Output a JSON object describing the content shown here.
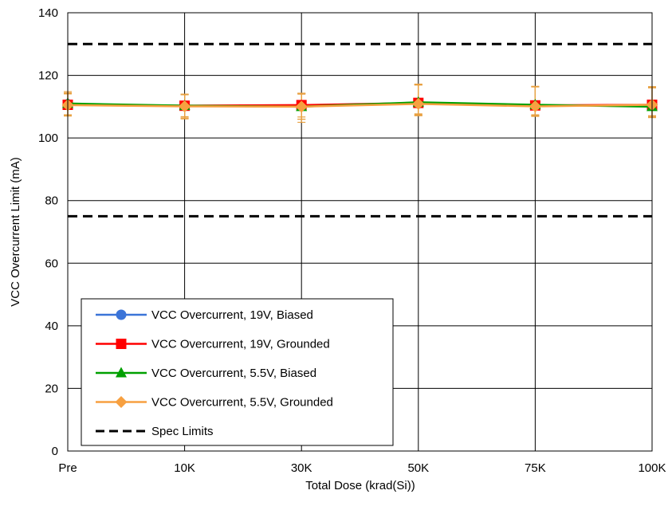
{
  "chart_data": {
    "type": "line",
    "title": "",
    "xlabel": "Total Dose (krad(Si))",
    "ylabel": "VCC Overcurrent Limit (mA)",
    "categories": [
      "Pre",
      "10K",
      "30K",
      "50K",
      "75K",
      "100K"
    ],
    "ylim": [
      0,
      140
    ],
    "yticks": [
      0,
      20,
      40,
      60,
      80,
      100,
      120,
      140
    ],
    "grid": true,
    "legend_position": "bottom-left",
    "series": [
      {
        "name": "VCC Overcurrent, 19V, Biased",
        "color": "#3b74d8",
        "marker": "circle",
        "values": [
          110.8,
          110.2,
          110.2,
          111.0,
          110.3,
          110.5
        ],
        "err_low": [
          3.5,
          3.8,
          4.2,
          3.8,
          3.2,
          3.8
        ],
        "err_high": [
          3.6,
          3.8,
          4.0,
          6.0,
          6.2,
          5.8
        ]
      },
      {
        "name": "VCC Overcurrent, 19V, Grounded",
        "color": "#ff0000",
        "marker": "square",
        "values": [
          110.6,
          110.3,
          110.5,
          111.2,
          110.4,
          110.6
        ],
        "err_low": [
          3.3,
          3.5,
          3.8,
          3.5,
          3.0,
          3.5
        ],
        "err_high": [
          3.5,
          3.6,
          3.8,
          5.8,
          5.9,
          5.5
        ]
      },
      {
        "name": "VCC Overcurrent, 5.5V, Biased",
        "color": "#00a000",
        "marker": "triangle",
        "values": [
          111.0,
          110.3,
          110.0,
          111.4,
          110.6,
          110.0
        ],
        "err_low": [
          3.6,
          4.2,
          5.0,
          4.0,
          3.5,
          3.5
        ],
        "err_high": [
          3.8,
          3.6,
          4.2,
          5.8,
          5.8,
          6.0
        ]
      },
      {
        "name": "VCC Overcurrent, 5.5V, Grounded",
        "color": "#f7a040",
        "marker": "diamond",
        "values": [
          110.5,
          110.1,
          110.0,
          110.9,
          110.1,
          110.6
        ],
        "err_low": [
          3.5,
          3.7,
          4.0,
          3.8,
          3.2,
          3.6
        ],
        "err_high": [
          3.6,
          3.7,
          4.0,
          6.0,
          6.3,
          5.8
        ]
      }
    ],
    "spec_limits": {
      "name": "Spec Limits",
      "color": "#000000",
      "values": [
        130,
        75
      ]
    }
  },
  "colors": {
    "errorbar": "#e8a040",
    "grid": "#000000"
  }
}
